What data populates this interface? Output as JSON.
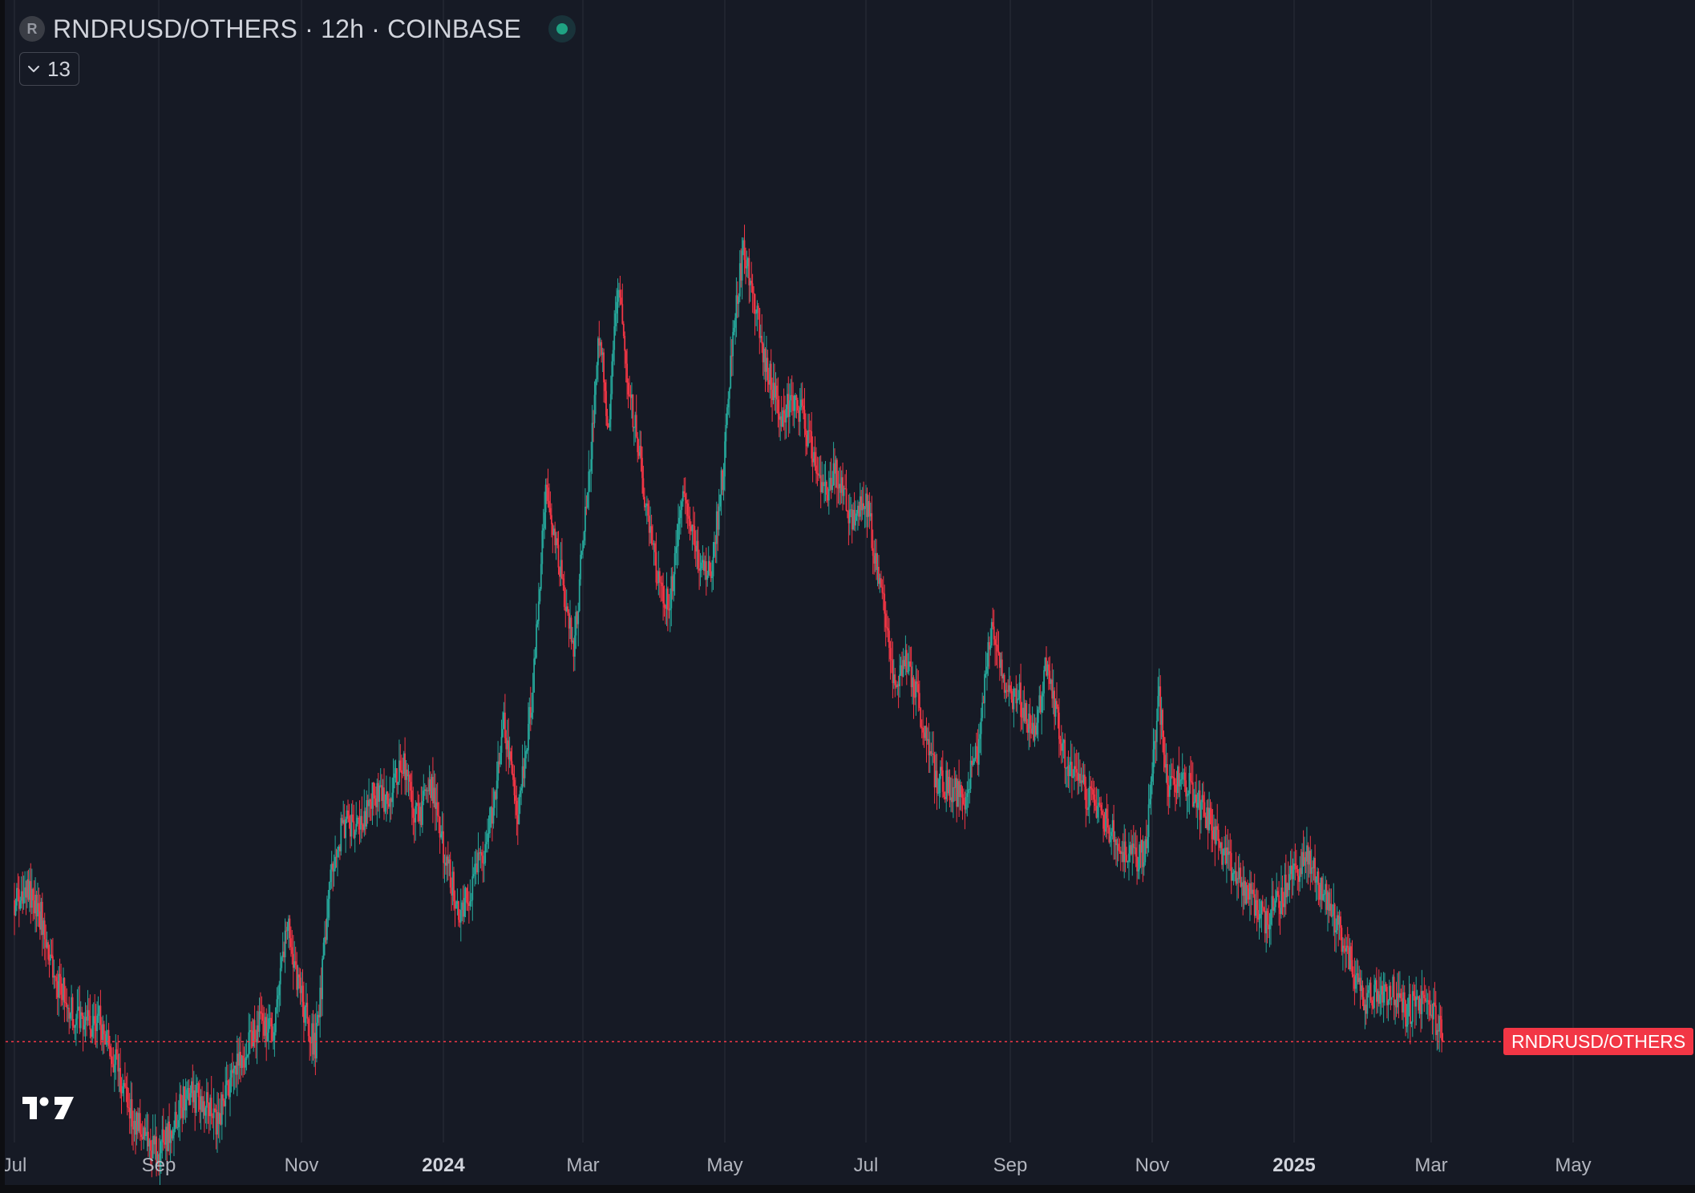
{
  "header": {
    "badge": "R",
    "title": "RNDRUSD/OTHERS · 12h · COINBASE"
  },
  "indicators_toggle": {
    "count": "13"
  },
  "price_label": "RNDRUSD/OTHERS",
  "colors": {
    "up": "#26a69a",
    "down": "#f23645",
    "background": "#161a25",
    "grid": "#2a2e39",
    "status": "#1fa383"
  },
  "icons": {
    "badge": "symbol-badge-icon",
    "status": "market-open-status-icon",
    "toggle": "chevron-down-icon",
    "logo": "tradingview-logo-icon"
  },
  "chart_data": {
    "type": "candlestick",
    "interval": "12h",
    "series_name": "RNDRUSD/OTHERS",
    "x_axis_ticks": [
      {
        "label": "Jul",
        "bold": false
      },
      {
        "label": "Sep",
        "bold": false
      },
      {
        "label": "Nov",
        "bold": false
      },
      {
        "label": "2024",
        "bold": true
      },
      {
        "label": "Mar",
        "bold": false
      },
      {
        "label": "May",
        "bold": false
      },
      {
        "label": "Jul",
        "bold": false
      },
      {
        "label": "Sep",
        "bold": false
      },
      {
        "label": "Nov",
        "bold": false
      },
      {
        "label": "2025",
        "bold": true
      },
      {
        "label": "Mar",
        "bold": false
      },
      {
        "label": "May",
        "bold": false
      }
    ],
    "grid": true,
    "legend": "none",
    "relative_level_range": [
      0,
      100
    ],
    "last_value": 8,
    "price_path": [
      [
        "2023-07-01",
        22
      ],
      [
        "2023-07-07",
        23
      ],
      [
        "2023-07-13",
        20
      ],
      [
        "2023-07-19",
        14
      ],
      [
        "2023-07-26",
        11
      ],
      [
        "2023-08-01",
        10
      ],
      [
        "2023-08-07",
        10
      ],
      [
        "2023-08-13",
        6
      ],
      [
        "2023-08-20",
        1
      ],
      [
        "2023-08-26",
        -1
      ],
      [
        "2023-09-01",
        -3
      ],
      [
        "2023-09-07",
        0
      ],
      [
        "2023-09-13",
        3
      ],
      [
        "2023-09-20",
        2
      ],
      [
        "2023-09-26",
        0
      ],
      [
        "2023-10-02",
        4
      ],
      [
        "2023-10-08",
        7
      ],
      [
        "2023-10-14",
        10
      ],
      [
        "2023-10-20",
        9
      ],
      [
        "2023-10-26",
        20
      ],
      [
        "2023-11-01",
        12
      ],
      [
        "2023-11-07",
        7
      ],
      [
        "2023-11-14",
        26
      ],
      [
        "2023-11-20",
        30
      ],
      [
        "2023-11-26",
        29
      ],
      [
        "2023-12-02",
        33
      ],
      [
        "2023-12-08",
        31
      ],
      [
        "2023-12-14",
        36
      ],
      [
        "2023-12-21",
        30
      ],
      [
        "2023-12-27",
        33
      ],
      [
        "2024-01-02",
        26
      ],
      [
        "2024-01-08",
        21
      ],
      [
        "2024-01-14",
        24
      ],
      [
        "2024-01-20",
        28
      ],
      [
        "2024-01-27",
        39
      ],
      [
        "2024-02-02",
        31
      ],
      [
        "2024-02-08",
        42
      ],
      [
        "2024-02-14",
        62
      ],
      [
        "2024-02-20",
        55
      ],
      [
        "2024-02-26",
        47
      ],
      [
        "2024-03-04",
        65
      ],
      [
        "2024-03-08",
        78
      ],
      [
        "2024-03-12",
        69
      ],
      [
        "2024-03-16",
        83
      ],
      [
        "2024-03-20",
        74
      ],
      [
        "2024-03-26",
        65
      ],
      [
        "2024-04-01",
        55
      ],
      [
        "2024-04-07",
        51
      ],
      [
        "2024-04-13",
        62
      ],
      [
        "2024-04-19",
        56
      ],
      [
        "2024-04-25",
        54
      ],
      [
        "2024-05-01",
        66
      ],
      [
        "2024-05-05",
        80
      ],
      [
        "2024-05-09",
        86
      ],
      [
        "2024-05-13",
        82
      ],
      [
        "2024-05-19",
        75
      ],
      [
        "2024-05-25",
        70
      ],
      [
        "2024-05-31",
        72
      ],
      [
        "2024-06-06",
        68
      ],
      [
        "2024-06-12",
        62
      ],
      [
        "2024-06-18",
        64
      ],
      [
        "2024-06-24",
        60
      ],
      [
        "2024-07-01",
        62
      ],
      [
        "2024-07-07",
        53
      ],
      [
        "2024-07-13",
        44
      ],
      [
        "2024-07-19",
        46
      ],
      [
        "2024-07-25",
        40
      ],
      [
        "2024-07-31",
        34
      ],
      [
        "2024-08-06",
        33
      ],
      [
        "2024-08-12",
        32
      ],
      [
        "2024-08-18",
        37
      ],
      [
        "2024-08-24",
        49
      ],
      [
        "2024-08-30",
        42
      ],
      [
        "2024-09-05",
        42
      ],
      [
        "2024-09-11",
        38
      ],
      [
        "2024-09-17",
        46
      ],
      [
        "2024-09-23",
        37
      ],
      [
        "2024-09-29",
        34
      ],
      [
        "2024-10-05",
        32
      ],
      [
        "2024-10-11",
        30
      ],
      [
        "2024-10-17",
        28
      ],
      [
        "2024-10-23",
        26
      ],
      [
        "2024-10-29",
        27
      ],
      [
        "2024-11-04",
        42
      ],
      [
        "2024-11-08",
        33
      ],
      [
        "2024-11-14",
        34
      ],
      [
        "2024-11-20",
        32
      ],
      [
        "2024-11-26",
        30
      ],
      [
        "2024-12-02",
        26
      ],
      [
        "2024-12-08",
        24
      ],
      [
        "2024-12-14",
        22
      ],
      [
        "2024-12-20",
        20
      ],
      [
        "2024-12-26",
        22
      ],
      [
        "2025-01-01",
        25
      ],
      [
        "2025-01-07",
        26
      ],
      [
        "2025-01-13",
        23
      ],
      [
        "2025-01-19",
        20
      ],
      [
        "2025-01-25",
        16
      ],
      [
        "2025-01-31",
        12
      ],
      [
        "2025-02-06",
        13
      ],
      [
        "2025-02-12",
        13
      ],
      [
        "2025-02-18",
        11
      ],
      [
        "2025-02-24",
        12
      ],
      [
        "2025-03-02",
        11
      ],
      [
        "2025-03-06",
        8
      ]
    ]
  }
}
